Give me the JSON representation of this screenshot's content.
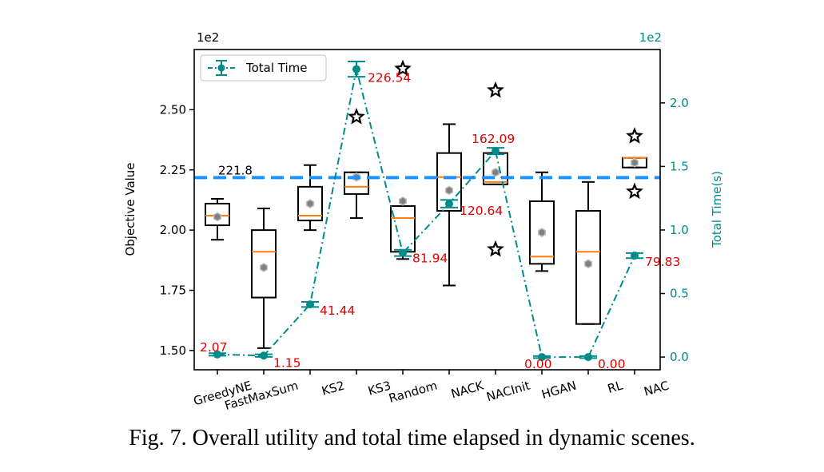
{
  "chart_data": {
    "type": "box+line",
    "categories": [
      "GreedyNE",
      "FastMaxSum",
      "KS2",
      "KS3",
      "Random",
      "NACK",
      "NACInit",
      "HGAN",
      "RL",
      "NAC"
    ],
    "left_axis": {
      "label": "Objective Value",
      "multiplier": "1e2",
      "lim": [
        1.42,
        2.75
      ],
      "ticks": [
        "1.50",
        "1.75",
        "2.00",
        "2.25",
        "2.50"
      ]
    },
    "right_axis": {
      "label": "Total Time(s)",
      "multiplier": "1e2",
      "lim": [
        -0.1,
        2.42
      ],
      "ticks": [
        "0.0",
        "0.5",
        "1.0",
        "1.5",
        "2.0"
      ],
      "color": "#008b8b"
    },
    "boxes": [
      {
        "whislo": 1.96,
        "q1": 2.02,
        "med": 2.06,
        "q3": 2.11,
        "whishi": 2.13,
        "mean": 2.055,
        "fliers": []
      },
      {
        "whislo": 1.51,
        "q1": 1.72,
        "med": 1.91,
        "q3": 2.0,
        "whishi": 2.09,
        "mean": 1.845,
        "fliers": []
      },
      {
        "whislo": 2.0,
        "q1": 2.04,
        "med": 2.06,
        "q3": 2.18,
        "whishi": 2.27,
        "mean": 2.11,
        "fliers": []
      },
      {
        "whislo": 2.05,
        "q1": 2.15,
        "med": 2.18,
        "q3": 2.24,
        "whishi": 2.24,
        "mean": 2.22,
        "fliers": [
          2.47
        ]
      },
      {
        "whislo": 1.88,
        "q1": 1.91,
        "med": 2.05,
        "q3": 2.1,
        "whishi": 2.1,
        "mean": 2.12,
        "fliers": [
          2.67
        ]
      },
      {
        "whislo": 1.77,
        "q1": 2.08,
        "med": 2.22,
        "q3": 2.32,
        "whishi": 2.44,
        "mean": 2.165,
        "fliers": []
      },
      {
        "whislo": 2.19,
        "q1": 2.19,
        "med": 2.2,
        "q3": 2.32,
        "whishi": 2.32,
        "mean": 2.24,
        "fliers": [
          1.92,
          2.58
        ]
      },
      {
        "whislo": 1.83,
        "q1": 1.86,
        "med": 1.89,
        "q3": 2.12,
        "whishi": 2.24,
        "mean": 1.99,
        "fliers": []
      },
      {
        "whislo": 1.61,
        "q1": 1.61,
        "med": 1.91,
        "q3": 2.08,
        "whishi": 2.2,
        "mean": 1.86,
        "fliers": []
      },
      {
        "whislo": 2.26,
        "q1": 2.26,
        "med": 2.3,
        "q3": 2.3,
        "whishi": 2.3,
        "mean": 2.28,
        "fliers": [
          2.16,
          2.39
        ]
      }
    ],
    "hline": {
      "value": 2.218,
      "label": "221.8",
      "color": "#1e90ff"
    },
    "time_series": {
      "name": "Total Time",
      "values": [
        0.0207,
        0.0115,
        0.4144,
        2.2654,
        0.8194,
        1.2064,
        1.6209,
        0.0,
        0.0,
        0.7983
      ],
      "errors": [
        0.01,
        0.01,
        0.02,
        0.06,
        0.025,
        0.03,
        0.025,
        0.008,
        0.008,
        0.02
      ],
      "labels": [
        "2.07",
        "1.15",
        "41.44",
        "226.54",
        "81.94",
        "120.64",
        "162.09",
        "0.00",
        "0.00",
        "79.83"
      ],
      "color": "#008b8b"
    },
    "legend": {
      "position": "top-left",
      "entries": [
        "Total Time"
      ]
    },
    "grid": false
  },
  "caption": "Fig. 7.  Overall utility and total time elapsed in dynamic scenes.",
  "colors": {
    "box": "#000000",
    "median": "#ff7f0e",
    "mean": "#808080",
    "value_label": "#e00000"
  }
}
